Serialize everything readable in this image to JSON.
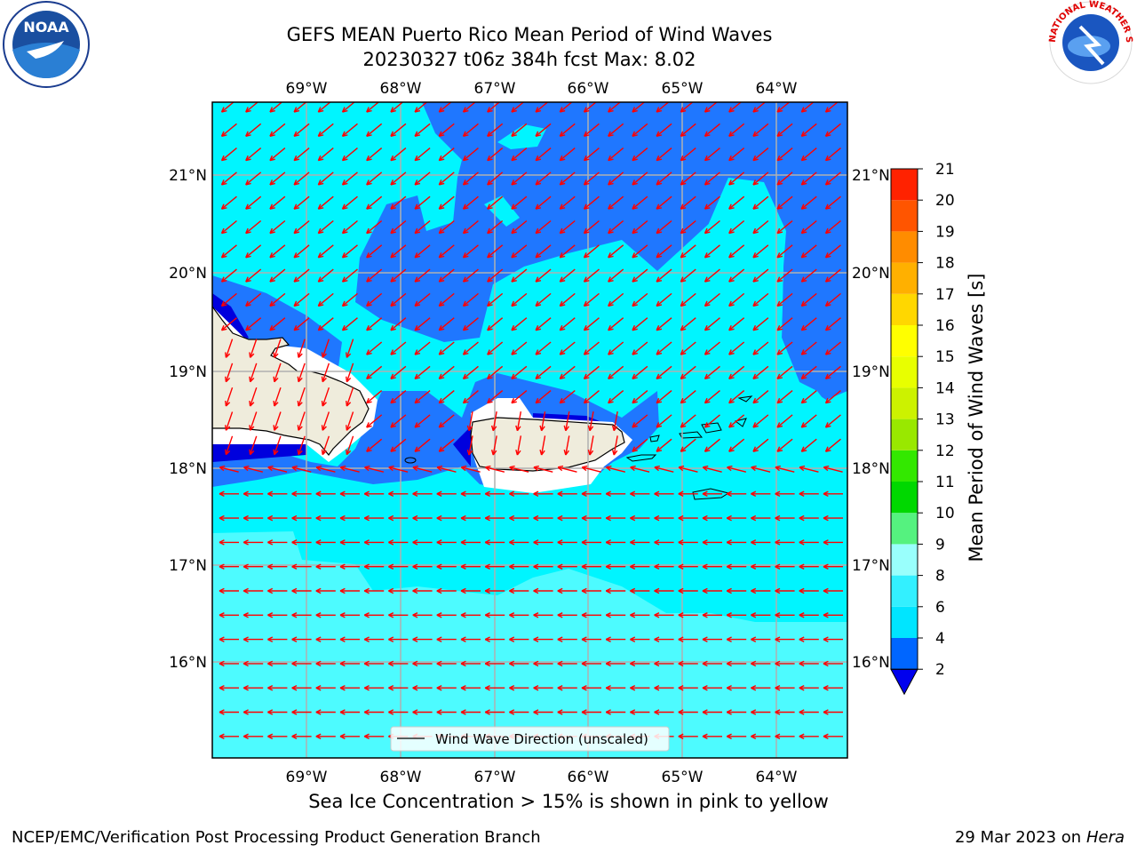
{
  "header": {
    "title_line1": "GEFS MEAN Puerto Rico Mean Period of Wind Waves",
    "title_line2": "20230327 t06z 384h fcst   Max: 8.02"
  },
  "logos": {
    "left": {
      "name": "noaa-logo",
      "text": "NOAA"
    },
    "right": {
      "name": "nws-logo",
      "text": "NATIONAL WEATHER SERVICE"
    }
  },
  "map": {
    "lon_labels": [
      "69°W",
      "68°W",
      "67°W",
      "66°W",
      "65°W",
      "64°W"
    ],
    "lat_labels": [
      "21°N",
      "20°N",
      "19°N",
      "18°N",
      "17°N",
      "16°N"
    ],
    "legend_label": "Wind Wave Direction (unscaled)",
    "arrow_color": "#ff0000",
    "land_color": "#efecdc",
    "coast_color": "#000000"
  },
  "colorbar": {
    "label": "Mean Period of Wind Waves [s]",
    "ticks": [
      "2",
      "4",
      "6",
      "8",
      "9",
      "10",
      "11",
      "12",
      "13",
      "14",
      "15",
      "16",
      "17",
      "18",
      "19",
      "20",
      "21"
    ],
    "colors": [
      "#0066ff",
      "#00e5ff",
      "#33f0ff",
      "#99fffc",
      "#55f27f",
      "#00d800",
      "#33e800",
      "#99e800",
      "#ccf200",
      "#e8ff00",
      "#ffff00",
      "#ffd700",
      "#ffb000",
      "#ff8c00",
      "#ff5500",
      "#ff2200",
      "#ff0000"
    ],
    "under_color": "#0000ee"
  },
  "field_colors": {
    "dark_blue": "#0000dd",
    "blue": "#1f77ff",
    "cyan": "#00f5ff",
    "light_cyan": "#4dfbff"
  },
  "footer": {
    "subtitle": "Sea Ice Concentration > 15% is shown in pink to yellow",
    "left": "NCEP/EMC/Verification Post Processing Product Generation Branch",
    "date": "29 Mar 2023 on",
    "host": "Hera"
  }
}
